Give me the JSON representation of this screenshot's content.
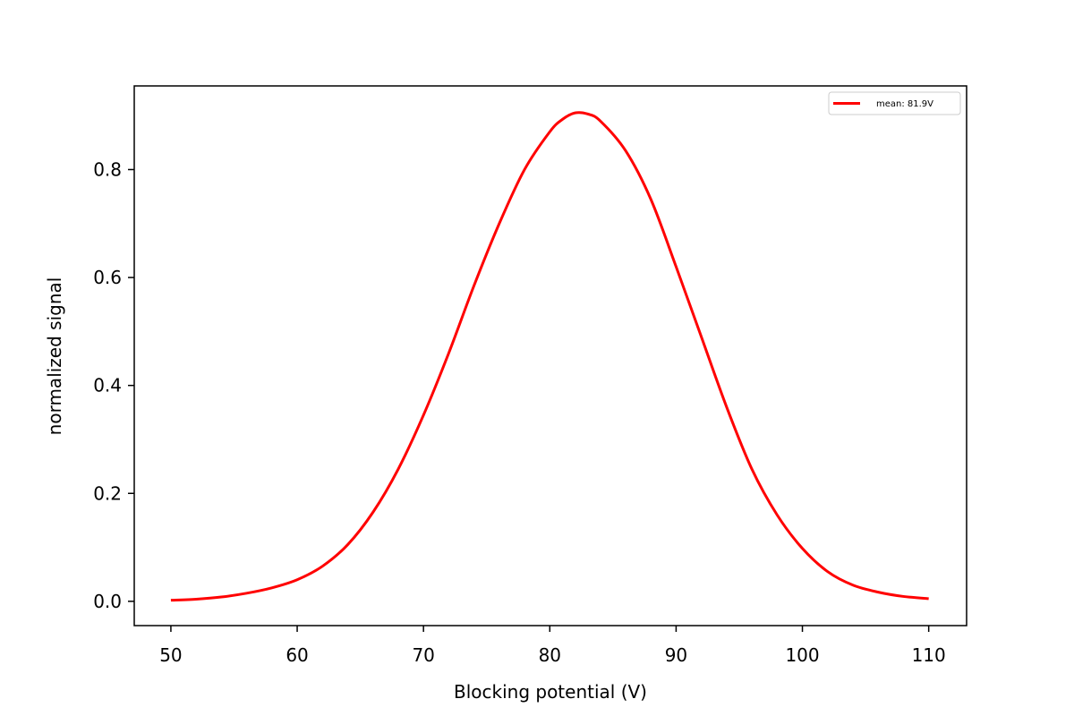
{
  "chart_data": {
    "type": "line",
    "title": "",
    "xlabel": "Blocking potential (V)",
    "ylabel": "normalized signal",
    "xlim": [
      47.1,
      113.0
    ],
    "ylim": [
      -0.045,
      0.955
    ],
    "xticks": [
      50,
      60,
      70,
      80,
      90,
      100,
      110
    ],
    "xtick_labels": [
      "50",
      "60",
      "70",
      "80",
      "90",
      "100",
      "110"
    ],
    "yticks": [
      0.0,
      0.2,
      0.4,
      0.6,
      0.8
    ],
    "ytick_labels": [
      "0.0",
      "0.2",
      "0.4",
      "0.6",
      "0.8"
    ],
    "grid": false,
    "legend": {
      "position": "upper right"
    },
    "series": [
      {
        "name": "mean: 81.9V",
        "color": "#ff0000",
        "x": [
          50,
          52,
          54,
          56,
          58,
          60,
          62,
          64,
          66,
          68,
          70,
          72,
          74,
          76,
          78,
          80,
          81,
          82,
          83,
          84,
          86,
          88,
          90,
          92,
          94,
          96,
          98,
          100,
          102,
          104,
          106,
          108,
          110
        ],
        "y": [
          0.002,
          0.004,
          0.008,
          0.015,
          0.025,
          0.04,
          0.065,
          0.105,
          0.165,
          0.245,
          0.345,
          0.46,
          0.585,
          0.7,
          0.8,
          0.87,
          0.893,
          0.905,
          0.903,
          0.89,
          0.835,
          0.745,
          0.62,
          0.49,
          0.36,
          0.245,
          0.16,
          0.098,
          0.055,
          0.03,
          0.017,
          0.009,
          0.005
        ]
      }
    ]
  }
}
